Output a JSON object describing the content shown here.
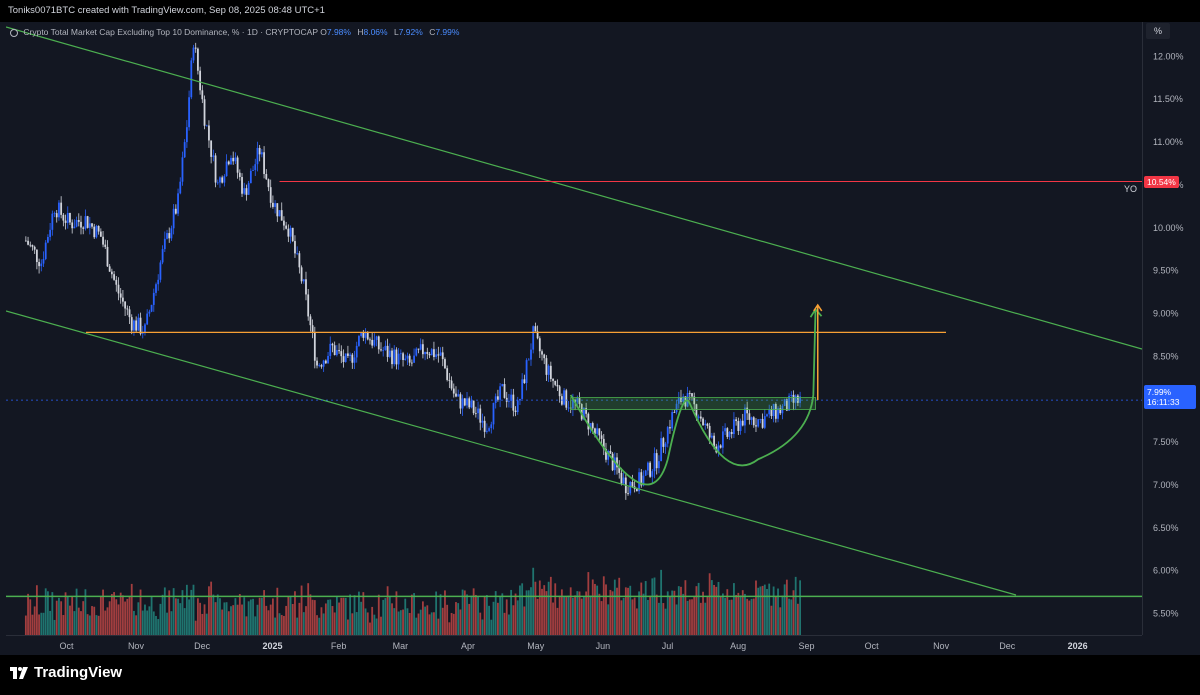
{
  "header": {
    "credit": "Toniks0071BTC created with TradingView.com, Sep 08, 2025 08:48 UTC+1"
  },
  "legend": {
    "symbol": "Crypto Total Market Cap Excluding Top 10 Dominance, % · 1D · CRYPTOCAP",
    "o_label": "O",
    "o_value": "7.98%",
    "h_label": "H",
    "h_value": "8.06%",
    "l_label": "L",
    "l_value": "7.92%",
    "c_label": "C",
    "c_value": "7.99%"
  },
  "price_axis": {
    "unit": "%",
    "ticks": [
      "12.00%",
      "11.50%",
      "11.00%",
      "10.50%",
      "10.00%",
      "9.50%",
      "9.00%",
      "8.50%",
      "8.00%",
      "7.50%",
      "7.00%",
      "6.50%",
      "6.00%",
      "5.50%"
    ],
    "level_label": "10.54%",
    "level_tag": "YO",
    "current_price": "7.99%",
    "countdown": "16:11:33"
  },
  "colors": {
    "bg": "#131722",
    "up": "#2962ff",
    "down": "#d1d4dc",
    "channel": "#4caf50",
    "resistance": "#f23645",
    "support_orange": "#f7a035",
    "vol_up": "#26a69a",
    "vol_down": "#ef5350",
    "current": "#2962ff"
  },
  "footer": {
    "brand": "TradingView"
  },
  "chart_data": {
    "type": "candlestick",
    "x_labels": [
      "Oct",
      "Nov",
      "Dec",
      "2025",
      "Feb",
      "Mar",
      "Apr",
      "May",
      "Jun",
      "Jul",
      "Aug",
      "Sep",
      "Oct",
      "Nov",
      "Dec",
      "2026"
    ],
    "ylim": [
      5.25,
      12.4
    ],
    "y_ticks": [
      12.0,
      11.5,
      11.0,
      10.5,
      10.0,
      9.5,
      9.0,
      8.5,
      8.0,
      7.5,
      7.0,
      6.5,
      6.0,
      5.5
    ],
    "series": [
      {
        "name": "price_path",
        "points": [
          [
            "2024-09-22",
            9.85
          ],
          [
            "2024-09-29",
            9.6
          ],
          [
            "2024-10-05",
            10.25
          ],
          [
            "2024-10-12",
            10.05
          ],
          [
            "2024-10-19",
            10.1
          ],
          [
            "2024-10-26",
            9.9
          ],
          [
            "2024-11-02",
            9.3
          ],
          [
            "2024-11-09",
            8.9
          ],
          [
            "2024-11-15",
            8.8
          ],
          [
            "2024-11-23",
            9.7
          ],
          [
            "2024-11-30",
            10.3
          ],
          [
            "2024-12-04",
            11.2
          ],
          [
            "2024-12-07",
            12.2
          ],
          [
            "2024-12-12",
            11.3
          ],
          [
            "2024-12-18",
            10.5
          ],
          [
            "2024-12-24",
            10.9
          ],
          [
            "2024-12-30",
            10.4
          ],
          [
            "2025-01-06",
            10.9
          ],
          [
            "2025-01-12",
            10.3
          ],
          [
            "2025-01-19",
            10.0
          ],
          [
            "2025-01-26",
            9.3
          ],
          [
            "2025-02-01",
            8.4
          ],
          [
            "2025-02-08",
            8.6
          ],
          [
            "2025-02-15",
            8.4
          ],
          [
            "2025-02-22",
            8.8
          ],
          [
            "2025-03-01",
            8.6
          ],
          [
            "2025-03-08",
            8.5
          ],
          [
            "2025-03-15",
            8.4
          ],
          [
            "2025-03-22",
            8.6
          ],
          [
            "2025-03-29",
            8.5
          ],
          [
            "2025-04-05",
            8.0
          ],
          [
            "2025-04-12",
            7.9
          ],
          [
            "2025-04-19",
            7.7
          ],
          [
            "2025-04-26",
            8.1
          ],
          [
            "2025-05-03",
            7.9
          ],
          [
            "2025-05-10",
            8.75
          ],
          [
            "2025-05-17",
            8.3
          ],
          [
            "2025-05-24",
            8.0
          ],
          [
            "2025-05-31",
            7.9
          ],
          [
            "2025-06-07",
            7.6
          ],
          [
            "2025-06-14",
            7.3
          ],
          [
            "2025-06-21",
            7.0
          ],
          [
            "2025-06-28",
            7.05
          ],
          [
            "2025-07-05",
            7.3
          ],
          [
            "2025-07-12",
            7.8
          ],
          [
            "2025-07-17",
            8.05
          ],
          [
            "2025-07-24",
            7.85
          ],
          [
            "2025-07-31",
            7.45
          ],
          [
            "2025-08-07",
            7.6
          ],
          [
            "2025-08-14",
            7.8
          ],
          [
            "2025-08-21",
            7.75
          ],
          [
            "2025-08-28",
            7.85
          ],
          [
            "2025-09-04",
            7.95
          ],
          [
            "2025-09-08",
            7.99
          ]
        ]
      }
    ],
    "volume_note": "volume histogram at chart bottom"
  }
}
